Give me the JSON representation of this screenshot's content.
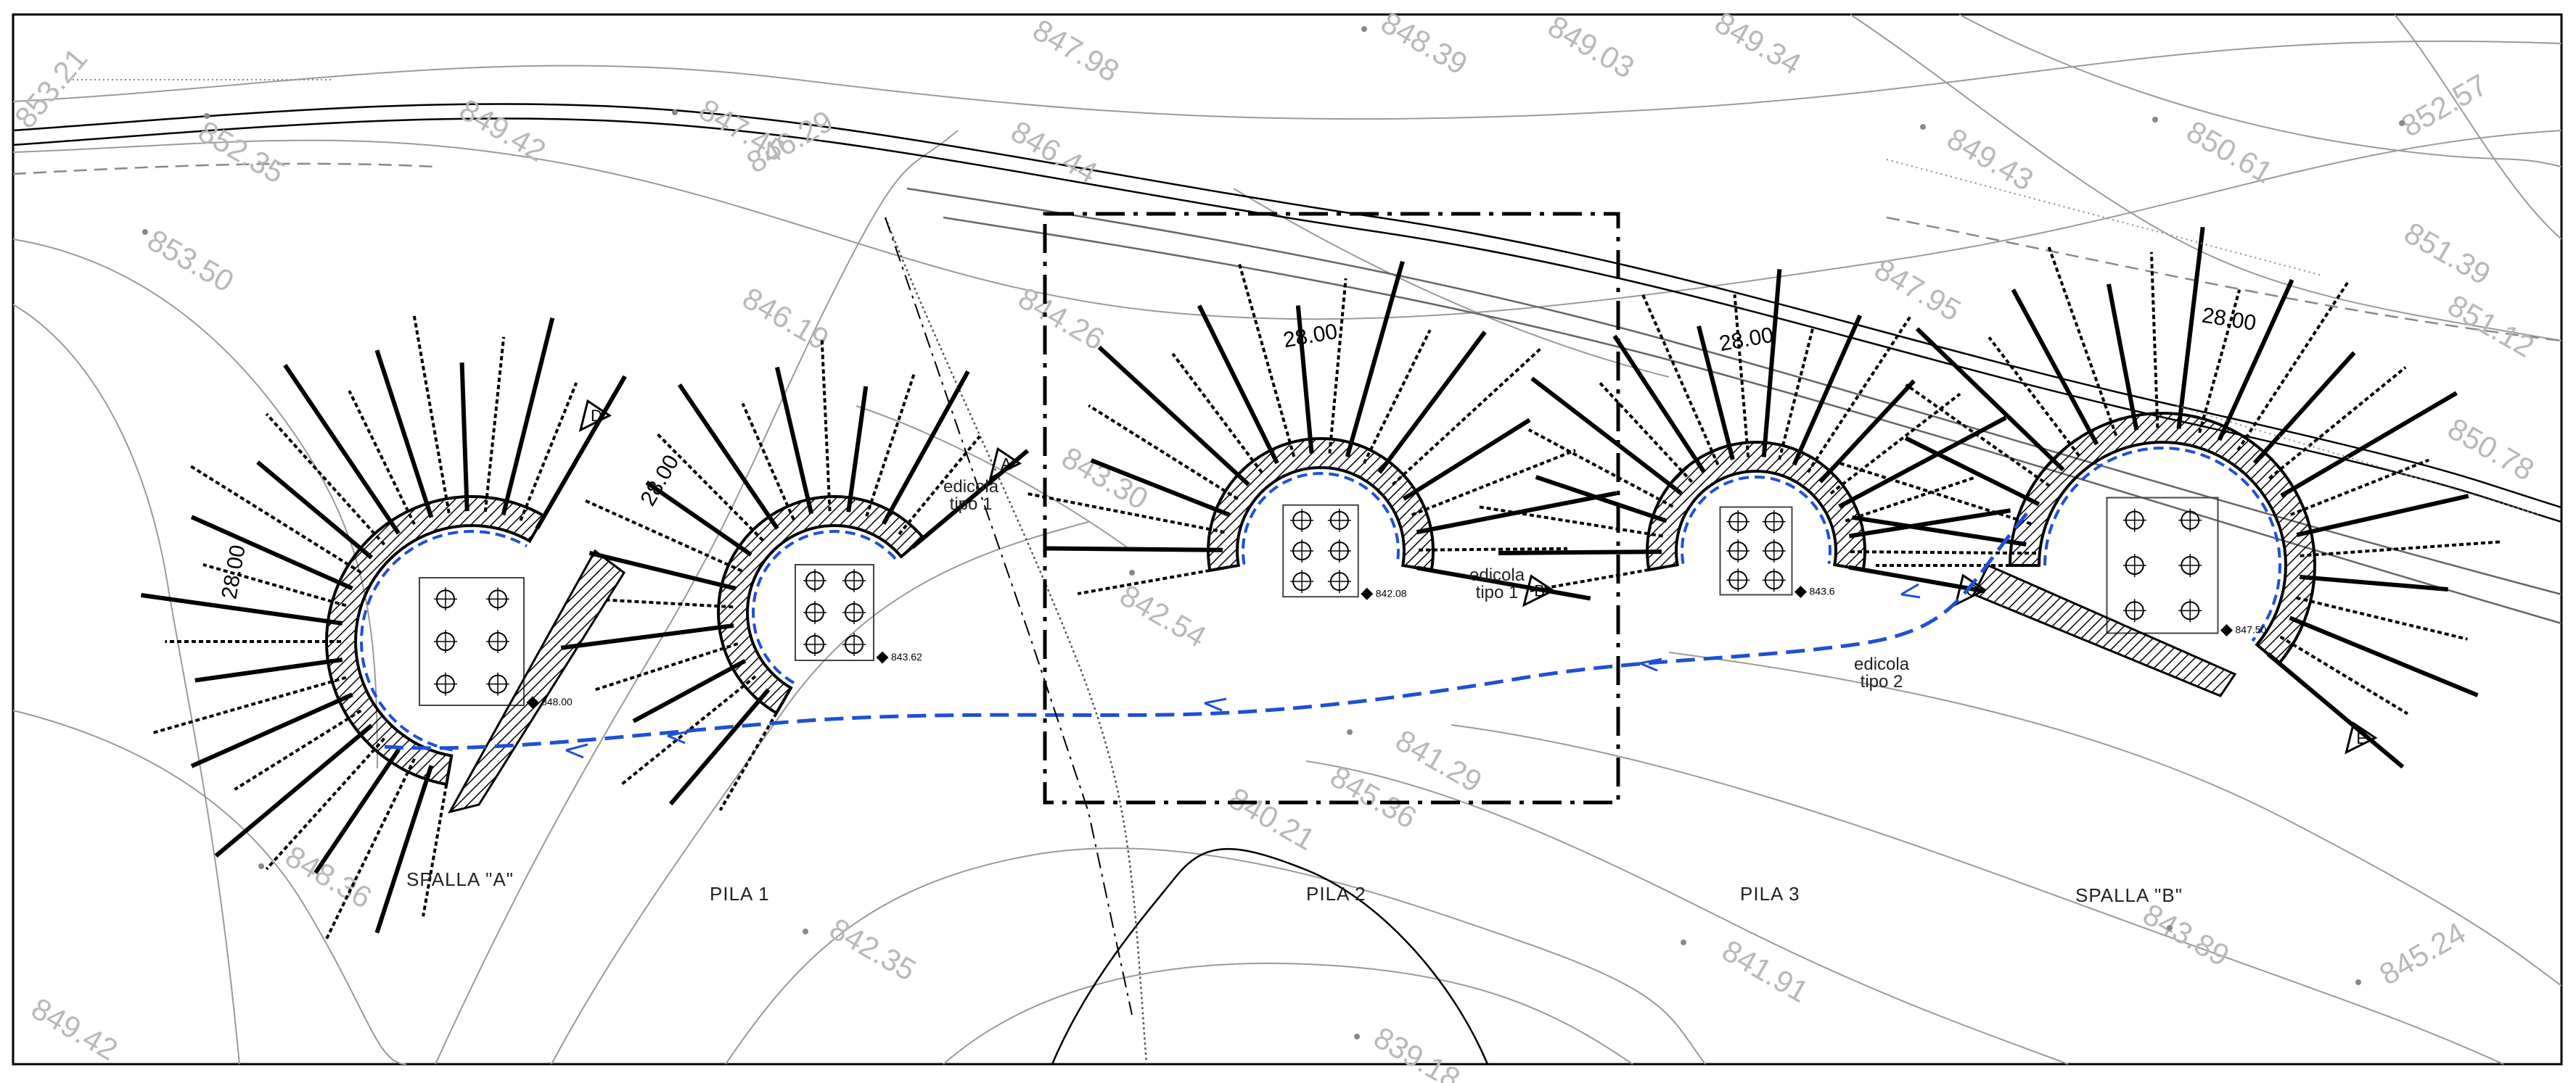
{
  "structures": [
    {
      "id": "spalla-a",
      "label": "SPALLA \"A\"",
      "dim": "28.00",
      "spot": "848.00",
      "section": "D"
    },
    {
      "id": "pila-1",
      "label": "PILA 1",
      "dim": "28.00",
      "spot": "843.62",
      "section": "A"
    },
    {
      "id": "pila-2",
      "label": "PILA 2",
      "dim": "28.00",
      "spot": "842.08",
      "section": "B"
    },
    {
      "id": "pila-3",
      "label": "PILA 3",
      "dim": "28.00",
      "spot": "843.6",
      "section": "C"
    },
    {
      "id": "spalla-b",
      "label": "SPALLA \"B\"",
      "dim": "28.00",
      "spot": "847.50",
      "section": "E"
    }
  ],
  "notes": {
    "edicola1_a_line1": "edicola",
    "edicola1_a_line2": "tipo  1",
    "edicola1_b_line1": "edicola",
    "edicola1_b_line2": "tipo  1",
    "edicola2_line1": "edicola",
    "edicola2_line2": "tipo  2"
  },
  "contour_elevations": [
    "853.50",
    "852.35",
    "853.21",
    "849.42",
    "848.36",
    "849.42",
    "842.35",
    "847.45",
    "846.19",
    "846.44",
    "847.98",
    "848.39",
    "849.03",
    "849.34",
    "849.43",
    "850.61",
    "852.57",
    "851.39",
    "851.12",
    "844.26",
    "843.30",
    "842.54",
    "840.21",
    "841.29",
    "841.91",
    "843.89",
    "845.24",
    "839.18",
    "845.36",
    "846.29",
    "850.78",
    "847.95"
  ],
  "colors": {
    "linework": "#000000",
    "contours": "#9a9a9a",
    "drainage": "#1f4fd6",
    "background": "#ffffff"
  }
}
